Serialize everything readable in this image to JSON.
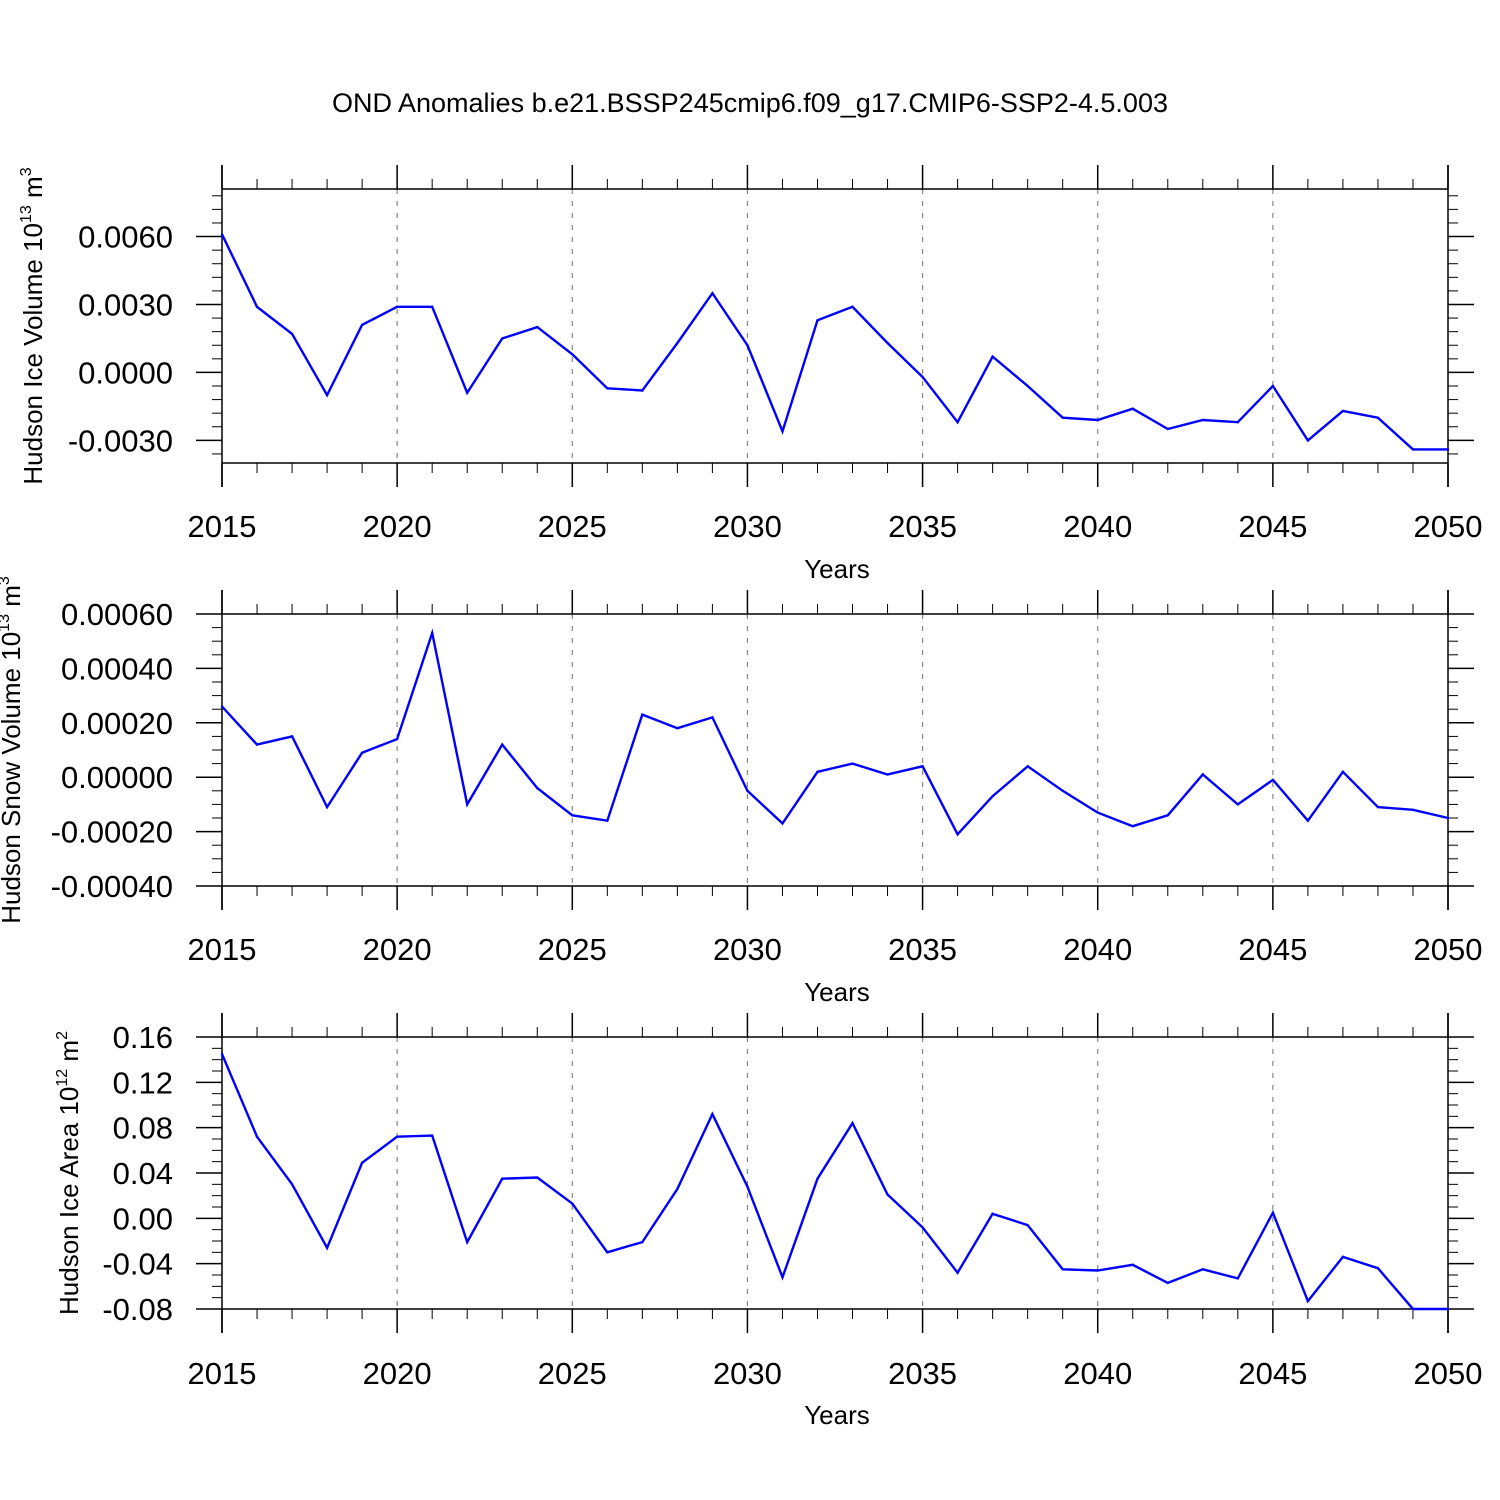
{
  "title": "OND Anomalies b.e21.BSSP245cmip6.f09_g17.CMIP6-SSP2-4.5.003",
  "style": {
    "line_color": "#0000ff",
    "grid_color": "#888888",
    "axis_color": "#000000"
  },
  "chart_data": [
    {
      "type": "line",
      "ylabel_main": "Hudson Ice Volume 10",
      "ylabel_exp": "13",
      "ylabel_unit": "m",
      "ylabel_unit_exp": "3",
      "xlabel": "Years",
      "xlim": [
        2015,
        2050
      ],
      "ylim": [
        -0.004,
        0.0081
      ],
      "yticks": [
        -0.003,
        0.0,
        0.003,
        0.006
      ],
      "ytick_labels": [
        "-0.0030",
        "0.0000",
        "0.0030",
        "0.0060"
      ],
      "xticks": [
        2015,
        2020,
        2025,
        2030,
        2035,
        2040,
        2045,
        2050
      ],
      "xtick_labels": [
        "2015",
        "2020",
        "2025",
        "2030",
        "2035",
        "2040",
        "2045",
        "2050"
      ],
      "minor_y_step": 0.0006,
      "x": [
        2015,
        2016,
        2017,
        2018,
        2019,
        2020,
        2021,
        2022,
        2023,
        2024,
        2025,
        2026,
        2027,
        2028,
        2029,
        2030,
        2031,
        2032,
        2033,
        2034,
        2035,
        2036,
        2037,
        2038,
        2039,
        2040,
        2041,
        2042,
        2043,
        2044,
        2045,
        2046,
        2047,
        2048,
        2049,
        2050
      ],
      "values": [
        0.0061,
        0.0029,
        0.0017,
        -0.001,
        0.0021,
        0.0029,
        0.0029,
        -0.0009,
        0.0015,
        0.002,
        0.0008,
        -0.0007,
        -0.0008,
        0.0013,
        0.0035,
        0.0012,
        -0.0026,
        0.0023,
        0.0029,
        0.0013,
        -0.0002,
        -0.0022,
        0.0007,
        -0.0006,
        -0.002,
        -0.0021,
        -0.0016,
        -0.0025,
        -0.0021,
        -0.0022,
        -0.0006,
        -0.003,
        -0.0017,
        -0.002,
        -0.0034,
        -0.0034
      ]
    },
    {
      "type": "line",
      "ylabel_main": "Hudson Snow Volume 10",
      "ylabel_exp": "13",
      "ylabel_unit": "m",
      "ylabel_unit_exp": "3",
      "xlabel": "Years",
      "xlim": [
        2015,
        2050
      ],
      "ylim": [
        -0.0004,
        0.0006
      ],
      "yticks": [
        -0.0004,
        -0.0002,
        0.0,
        0.0002,
        0.0004,
        0.0006
      ],
      "ytick_labels": [
        "-0.00040",
        "-0.00020",
        "0.00000",
        "0.00020",
        "0.00040",
        "0.00060"
      ],
      "xticks": [
        2015,
        2020,
        2025,
        2030,
        2035,
        2040,
        2045,
        2050
      ],
      "xtick_labels": [
        "2015",
        "2020",
        "2025",
        "2030",
        "2035",
        "2040",
        "2045",
        "2050"
      ],
      "minor_y_step": 5e-05,
      "x": [
        2015,
        2016,
        2017,
        2018,
        2019,
        2020,
        2021,
        2022,
        2023,
        2024,
        2025,
        2026,
        2027,
        2028,
        2029,
        2030,
        2031,
        2032,
        2033,
        2034,
        2035,
        2036,
        2037,
        2038,
        2039,
        2040,
        2041,
        2042,
        2043,
        2044,
        2045,
        2046,
        2047,
        2048,
        2049,
        2050
      ],
      "values": [
        0.00026,
        0.00012,
        0.00015,
        -0.00011,
        9e-05,
        0.00014,
        0.00053,
        -0.0001,
        0.00012,
        -4e-05,
        -0.00014,
        -0.00016,
        0.00023,
        0.00018,
        0.00022,
        -5e-05,
        -0.00017,
        2e-05,
        5e-05,
        1e-05,
        4e-05,
        -0.00021,
        -7e-05,
        4e-05,
        -5e-05,
        -0.00013,
        -0.00018,
        -0.00014,
        1e-05,
        -0.0001,
        -1e-05,
        -0.00016,
        2e-05,
        -0.00011,
        -0.00012,
        -0.00015
      ]
    },
    {
      "type": "line",
      "ylabel_main": "Hudson Ice Area 10",
      "ylabel_exp": "12",
      "ylabel_unit": "m",
      "ylabel_unit_exp": "2",
      "xlabel": "Years",
      "xlim": [
        2015,
        2050
      ],
      "ylim": [
        -0.08,
        0.16
      ],
      "yticks": [
        -0.08,
        -0.04,
        0.0,
        0.04,
        0.08,
        0.12,
        0.16
      ],
      "ytick_labels": [
        "-0.08",
        "-0.04",
        "0.00",
        "0.04",
        "0.08",
        "0.12",
        "0.16"
      ],
      "xticks": [
        2015,
        2020,
        2025,
        2030,
        2035,
        2040,
        2045,
        2050
      ],
      "xtick_labels": [
        "2015",
        "2020",
        "2025",
        "2030",
        "2035",
        "2040",
        "2045",
        "2050"
      ],
      "minor_y_step": 0.01,
      "x": [
        2015,
        2016,
        2017,
        2018,
        2019,
        2020,
        2021,
        2022,
        2023,
        2024,
        2025,
        2026,
        2027,
        2028,
        2029,
        2030,
        2031,
        2032,
        2033,
        2034,
        2035,
        2036,
        2037,
        2038,
        2039,
        2040,
        2041,
        2042,
        2043,
        2044,
        2045,
        2046,
        2047,
        2048,
        2049,
        2050
      ],
      "values": [
        0.145,
        0.072,
        0.03,
        -0.026,
        0.049,
        0.072,
        0.073,
        -0.021,
        0.035,
        0.036,
        0.013,
        -0.03,
        -0.021,
        0.026,
        0.092,
        0.028,
        -0.052,
        0.035,
        0.084,
        0.021,
        -0.008,
        -0.048,
        0.004,
        -0.006,
        -0.045,
        -0.046,
        -0.041,
        -0.057,
        -0.045,
        -0.053,
        0.005,
        -0.073,
        -0.034,
        -0.044,
        -0.08,
        -0.08
      ]
    }
  ]
}
